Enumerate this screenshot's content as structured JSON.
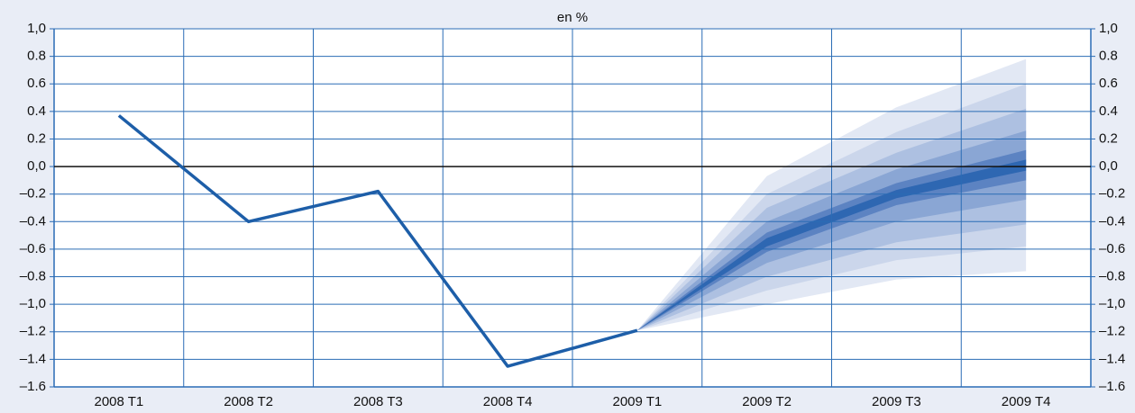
{
  "chart_data": {
    "type": "fan",
    "title": "en %",
    "categories": [
      "2008 T1",
      "2008 T2",
      "2008 T3",
      "2008 T4",
      "2009 T1",
      "2009 T2",
      "2009 T3",
      "2009 T4"
    ],
    "series": [
      {
        "color": "#1d5ea8",
        "values": [
          0.37,
          -0.4,
          -0.18,
          -1.45,
          -1.19,
          null,
          null,
          null
        ]
      }
    ],
    "fan": [
      {
        "color": "#e2e8f4",
        "upper": [
          null,
          null,
          null,
          null,
          -1.19,
          -0.07,
          0.43,
          0.78
        ],
        "lower": [
          null,
          null,
          null,
          null,
          -1.19,
          -1.0,
          -0.82,
          -0.76
        ]
      },
      {
        "color": "#cbd6eb",
        "upper": [
          null,
          null,
          null,
          null,
          -1.19,
          -0.2,
          0.25,
          0.6
        ],
        "lower": [
          null,
          null,
          null,
          null,
          -1.19,
          -0.9,
          -0.68,
          -0.58
        ]
      },
      {
        "color": "#adc0e1",
        "upper": [
          null,
          null,
          null,
          null,
          -1.19,
          -0.3,
          0.1,
          0.42
        ],
        "lower": [
          null,
          null,
          null,
          null,
          -1.19,
          -0.8,
          -0.55,
          -0.42
        ]
      },
      {
        "color": "#8aa6d4",
        "upper": [
          null,
          null,
          null,
          null,
          -1.19,
          -0.4,
          -0.02,
          0.26
        ],
        "lower": [
          null,
          null,
          null,
          null,
          -1.19,
          -0.7,
          -0.4,
          -0.24
        ]
      },
      {
        "color": "#5c83c2",
        "upper": [
          null,
          null,
          null,
          null,
          -1.19,
          -0.48,
          -0.12,
          0.12
        ],
        "lower": [
          null,
          null,
          null,
          null,
          -1.19,
          -0.62,
          -0.28,
          -0.1
        ]
      },
      {
        "color": "#2e67b2",
        "upper": [
          null,
          null,
          null,
          null,
          -1.19,
          -0.52,
          -0.17,
          0.05
        ],
        "lower": [
          null,
          null,
          null,
          null,
          -1.19,
          -0.58,
          -0.23,
          -0.03
        ]
      }
    ],
    "ylim": [
      -1.6,
      1.0
    ],
    "yticks": [
      {
        "value": 1.0,
        "label": "1,0"
      },
      0.8,
      0.6,
      0.4,
      0.2,
      {
        "value": 0,
        "label": "0,0"
      },
      {
        "value": -0.2,
        "label": "–0.2"
      },
      {
        "value": -0.4,
        "label": "–0.4"
      },
      {
        "value": -0.6,
        "label": "–0.6"
      },
      {
        "value": -0.8,
        "label": "–0.8"
      },
      {
        "value": -1.0,
        "label": "–1,0"
      },
      {
        "value": -1.2,
        "label": "–1.2"
      },
      {
        "value": -1.4,
        "label": "–1.4"
      },
      {
        "value": -1.6,
        "label": "–1.6"
      }
    ],
    "y2lim": [
      -1.6,
      1.0
    ],
    "y2ticks": [
      {
        "value": 1.0,
        "label": "1,0"
      },
      0.8,
      0.6,
      0.4,
      0.2,
      {
        "value": 0,
        "label": "0,0"
      },
      {
        "value": -0.2,
        "label": "–0.2"
      },
      {
        "value": -0.4,
        "label": "–0.4"
      },
      {
        "value": -0.6,
        "label": "–0.6"
      },
      {
        "value": -0.8,
        "label": "–0.8"
      },
      {
        "value": -1.0,
        "label": "–1,0"
      },
      {
        "value": -1.2,
        "label": "–1.2"
      },
      {
        "value": -1.4,
        "label": "–1.4"
      },
      {
        "value": -1.6,
        "label": "–1.6"
      }
    ],
    "grid": true
  }
}
